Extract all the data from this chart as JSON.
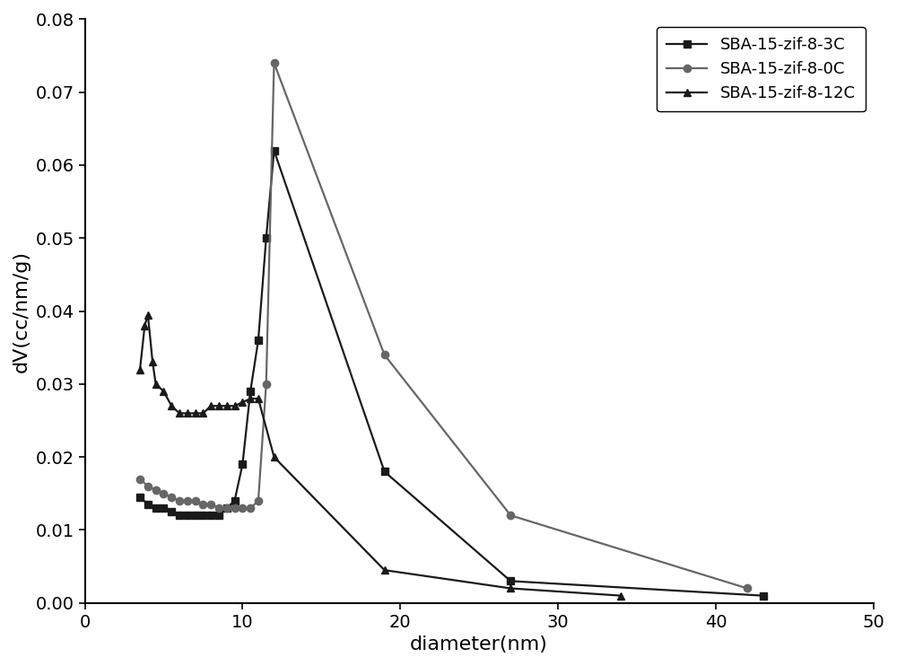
{
  "series": [
    {
      "label": "SBA-15-zif-8-3C",
      "color": "#1a1a1a",
      "marker": "s",
      "markersize": 6,
      "linewidth": 1.6,
      "x": [
        3.5,
        4.0,
        4.5,
        5.0,
        5.5,
        6.0,
        6.5,
        7.0,
        7.5,
        8.0,
        8.5,
        9.0,
        9.5,
        10.0,
        10.5,
        11.0,
        11.5,
        12.0,
        19.0,
        27.0,
        43.0
      ],
      "y": [
        0.0145,
        0.0135,
        0.013,
        0.013,
        0.0125,
        0.012,
        0.012,
        0.012,
        0.012,
        0.012,
        0.012,
        0.013,
        0.014,
        0.019,
        0.029,
        0.036,
        0.05,
        0.062,
        0.018,
        0.003,
        0.001
      ]
    },
    {
      "label": "SBA-15-zif-8-0C",
      "color": "#666666",
      "marker": "o",
      "markersize": 6,
      "linewidth": 1.6,
      "x": [
        3.5,
        4.0,
        4.5,
        5.0,
        5.5,
        6.0,
        6.5,
        7.0,
        7.5,
        8.0,
        8.5,
        9.0,
        9.5,
        10.0,
        10.5,
        11.0,
        11.5,
        12.0,
        19.0,
        27.0,
        42.0
      ],
      "y": [
        0.017,
        0.016,
        0.0155,
        0.015,
        0.0145,
        0.014,
        0.014,
        0.014,
        0.0135,
        0.0135,
        0.013,
        0.013,
        0.013,
        0.013,
        0.013,
        0.014,
        0.03,
        0.074,
        0.034,
        0.012,
        0.002
      ]
    },
    {
      "label": "SBA-15-zif-8-12C",
      "color": "#1a1a1a",
      "marker": "^",
      "markersize": 6,
      "linewidth": 1.6,
      "x": [
        3.5,
        3.8,
        4.0,
        4.3,
        4.5,
        5.0,
        5.5,
        6.0,
        6.5,
        7.0,
        7.5,
        8.0,
        8.5,
        9.0,
        9.5,
        10.0,
        10.5,
        11.0,
        12.0,
        19.0,
        27.0,
        34.0
      ],
      "y": [
        0.032,
        0.038,
        0.0395,
        0.033,
        0.03,
        0.029,
        0.027,
        0.026,
        0.026,
        0.026,
        0.026,
        0.027,
        0.027,
        0.027,
        0.027,
        0.0275,
        0.028,
        0.028,
        0.02,
        0.0045,
        0.002,
        0.001
      ]
    }
  ],
  "xlabel": "diameter(nm)",
  "ylabel": "dV(cc/nm/g)",
  "xlim": [
    0,
    50
  ],
  "ylim": [
    0.0,
    0.08
  ],
  "xticks": [
    0,
    10,
    20,
    30,
    40,
    50
  ],
  "yticks": [
    0.0,
    0.01,
    0.02,
    0.03,
    0.04,
    0.05,
    0.06,
    0.07,
    0.08
  ],
  "legend_loc": "upper right",
  "background_color": "#ffffff",
  "tick_fontsize": 14,
  "label_fontsize": 16
}
